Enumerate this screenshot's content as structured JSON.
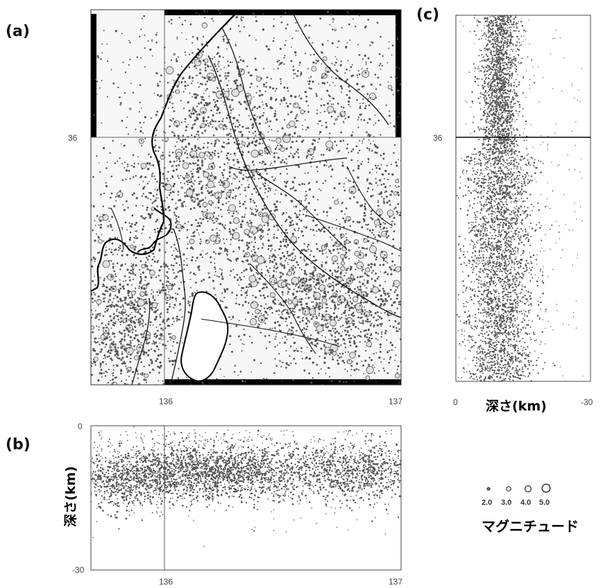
{
  "chart_data": [
    {
      "panel_label": "(a)",
      "type": "scatter",
      "description": "map",
      "x_ticks": [
        "136",
        "137"
      ],
      "y_ticks": [
        "36"
      ],
      "xlim": [
        135.75,
        137.0
      ],
      "ylim": [
        35.1,
        36.5
      ]
    },
    {
      "panel_label": "(b)",
      "type": "scatter",
      "ylabel": "深さ(km)",
      "x_ticks": [
        "136",
        "137"
      ],
      "y_ticks": [
        "0",
        "-30"
      ],
      "xlim": [
        135.75,
        137.0
      ],
      "ylim": [
        -30,
        0
      ]
    },
    {
      "panel_label": "(c)",
      "type": "scatter",
      "xlabel": "深さ(km)",
      "x_ticks": [
        "0",
        "-30"
      ],
      "y_ticks": [
        "36"
      ],
      "xlim": [
        0,
        -30
      ],
      "ylim": [
        35.1,
        36.5
      ]
    }
  ],
  "legend": {
    "title": "マグニチュード",
    "entries": [
      "2.0",
      "3.0",
      "4.0",
      "5.0"
    ]
  }
}
